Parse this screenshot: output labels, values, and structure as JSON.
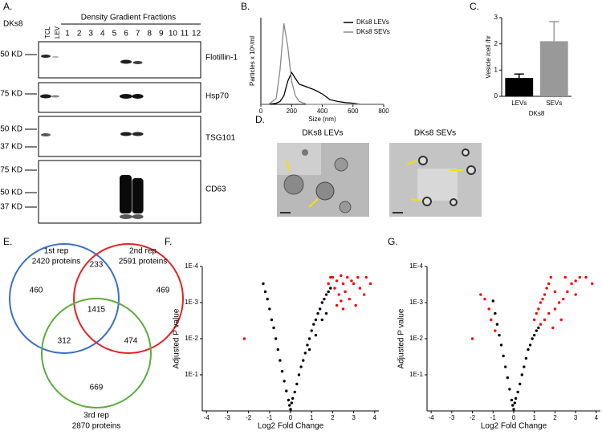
{
  "panel_labels": [
    "A.",
    "B.",
    "C.",
    "D.",
    "E.",
    "F.",
    "G."
  ],
  "blot": {
    "cell_line": "DKs8",
    "header": "Density Gradient Fractions",
    "lanes": [
      "TCL",
      "LEV",
      "1",
      "2",
      "3",
      "4",
      "5",
      "6",
      "7",
      "8",
      "9",
      "10",
      "11",
      "12"
    ],
    "rows": [
      {
        "target": "Flotillin-1",
        "markers": [
          "50 KD"
        ]
      },
      {
        "target": "Hsp70",
        "markers": [
          "75 KD"
        ]
      },
      {
        "target": "TSG101",
        "markers": [
          "50 KD",
          "37 KD"
        ]
      },
      {
        "target": "CD63",
        "markers": [
          "75 KD",
          "50 KD",
          "37 KD"
        ]
      }
    ]
  },
  "micrographs": {
    "titles": [
      "DKs8 LEVs",
      "DKs8 SEVs"
    ]
  },
  "venn": {
    "sets": [
      {
        "label": "1st rep",
        "count": "2420 proteins"
      },
      {
        "label": "2nd rep",
        "count": "2591 proteins"
      },
      {
        "label": "3rd rep",
        "count": "2870 proteins"
      }
    ],
    "regions": [
      460,
      233,
      469,
      1415,
      312,
      474,
      669
    ]
  },
  "chart_data": [
    {
      "type": "line",
      "xlabel": "Size (nm)",
      "ylabel": "Particles x 10⁶/ml",
      "x": [
        0,
        50,
        100,
        125,
        150,
        175,
        200,
        225,
        250,
        300,
        350,
        400,
        450,
        500,
        550,
        600,
        650,
        700,
        800
      ],
      "xlim": [
        0,
        800
      ],
      "xticks": [
        0,
        200,
        400,
        600,
        800
      ],
      "ylim": [
        0,
        150
      ],
      "legend": "upper right",
      "series": [
        {
          "name": "DKs8 LEVs",
          "color": "#000000",
          "values": [
            0,
            0,
            2,
            5,
            15,
            40,
            55,
            45,
            35,
            30,
            25,
            18,
            8,
            5,
            3,
            2,
            0,
            0,
            0
          ]
        },
        {
          "name": "DKs8 SEVs",
          "color": "#888888",
          "values": [
            0,
            0,
            10,
            60,
            140,
            100,
            40,
            15,
            5,
            0,
            0,
            0,
            0,
            0,
            0,
            0,
            0,
            0,
            0
          ]
        }
      ]
    },
    {
      "type": "bar",
      "xlabel": "DKs8",
      "ylabel": "Vesicle /cell /hr",
      "categories": [
        "LEVs",
        "SEVs"
      ],
      "values": [
        0.7,
        2.1
      ],
      "errors": [
        0.15,
        0.75
      ],
      "colors": [
        "#000000",
        "#999999"
      ],
      "ylim": [
        0,
        3
      ],
      "yticks": [
        0,
        1,
        2,
        3
      ]
    },
    {
      "type": "scatter",
      "xlabel": "Log2 Fold Change",
      "ylabel": "Adjusted P value",
      "log": true,
      "xlim": [
        -4.2,
        4.2
      ],
      "xticks": [
        -4,
        -3,
        -2,
        -1,
        0,
        1,
        2,
        3,
        4
      ],
      "ylim": [
        1,
        0.0001
      ],
      "yticks": [
        {
          "value": 0.0001,
          "label": "1E-4"
        },
        {
          "value": 0.001,
          "label": "1E-3"
        },
        {
          "value": 0.01,
          "label": "1E-2"
        },
        {
          "value": 0.1,
          "label": "1E-1"
        }
      ],
      "series": [
        {
          "color": "#000000",
          "x": [
            0,
            0.05,
            -0.05,
            0.1,
            -0.1,
            0.2,
            -0.2,
            0.3,
            -0.3,
            0.4,
            -0.4,
            0.5,
            -0.5,
            0.6,
            -0.6,
            0.7,
            -0.7,
            0.8,
            -0.8,
            0.9,
            -0.9,
            1.0,
            -1.0,
            1.1,
            -1.1,
            1.2,
            -1.2,
            1.3,
            -1.3,
            1.4,
            1.5,
            1.6,
            1.7,
            1.8,
            1.9,
            1.2,
            0.9,
            1.5,
            1.7
          ],
          "values": [
            0.9,
            0.6,
            0.7,
            0.45,
            0.5,
            0.3,
            0.28,
            0.18,
            0.15,
            0.1,
            0.08,
            0.06,
            0.04,
            0.04,
            0.02,
            0.025,
            0.01,
            0.015,
            0.005,
            0.01,
            0.003,
            0.006,
            0.0015,
            0.004,
            0.0008,
            0.003,
            0.0005,
            0.002,
            0.0003,
            0.0015,
            0.001,
            0.0008,
            0.0006,
            0.0005,
            0.0004,
            0.008,
            0.02,
            0.003,
            0.002
          ]
        },
        {
          "color": "#ff0000",
          "x": [
            -2.2,
            1.8,
            2.0,
            2.1,
            2.2,
            2.3,
            2.4,
            2.5,
            2.6,
            2.7,
            2.8,
            2.9,
            3.0,
            3.1,
            3.2,
            3.3,
            3.5,
            3.6,
            3.8,
            2.2,
            2.5,
            1.9,
            2.4
          ],
          "values": [
            0.01,
            0.0003,
            0.0002,
            0.0004,
            0.00025,
            0.0006,
            0.00018,
            0.0003,
            0.0005,
            0.0002,
            0.0008,
            0.00025,
            0.0003,
            0.0012,
            0.0002,
            0.0004,
            0.0006,
            0.0002,
            0.0003,
            0.0012,
            0.0015,
            0.0002,
            0.0009
          ]
        }
      ]
    },
    {
      "type": "scatter",
      "xlabel": "Log2 Fold Change",
      "ylabel": "Adjusted P value",
      "log": true,
      "xlim": [
        -4.2,
        4.2
      ],
      "xticks": [
        -4,
        -3,
        -2,
        -1,
        0,
        1,
        2,
        3,
        4
      ],
      "ylim": [
        1,
        0.0001
      ],
      "yticks": [
        {
          "value": 0.0001,
          "label": "1E-4"
        },
        {
          "value": 0.001,
          "label": "1E-3"
        },
        {
          "value": 0.01,
          "label": "1E-2"
        },
        {
          "value": 0.1,
          "label": "1E-1"
        }
      ],
      "series": [
        {
          "color": "#000000",
          "x": [
            0,
            0.05,
            -0.05,
            0.1,
            -0.1,
            0.2,
            -0.2,
            0.3,
            -0.3,
            0.4,
            -0.4,
            0.5,
            -0.5,
            0.6,
            -0.6,
            0.7,
            -0.7,
            0.8,
            -0.8,
            0.9,
            -0.9,
            1.0,
            1.1,
            1.2,
            -1.0
          ],
          "values": [
            0.9,
            0.6,
            0.7,
            0.45,
            0.5,
            0.3,
            0.25,
            0.18,
            0.12,
            0.1,
            0.06,
            0.06,
            0.03,
            0.035,
            0.015,
            0.02,
            0.008,
            0.015,
            0.004,
            0.01,
            0.002,
            0.008,
            0.006,
            0.005,
            0.0009
          ]
        },
        {
          "color": "#ff0000",
          "x": [
            -1.1,
            -1.2,
            -1.4,
            -1.6,
            -2.0,
            -0.9,
            1.0,
            1.1,
            1.2,
            1.3,
            1.4,
            1.5,
            1.6,
            1.7,
            1.8,
            1.3,
            1.5,
            1.7,
            2.0,
            2.2,
            2.4,
            2.6,
            2.8,
            3.0,
            3.2,
            3.5,
            3.8,
            2.0,
            2.5,
            3.0,
            1.9,
            2.3
          ],
          "values": [
            0.003,
            0.0015,
            0.0008,
            0.0006,
            0.01,
            0.006,
            0.003,
            0.002,
            0.0015,
            0.001,
            0.0008,
            0.0006,
            0.0004,
            0.0003,
            0.0002,
            0.004,
            0.003,
            0.002,
            0.0015,
            0.001,
            0.0008,
            0.0005,
            0.0003,
            0.00025,
            0.0002,
            0.0002,
            0.0003,
            0.0005,
            0.0002,
            0.0006,
            0.005,
            0.003
          ]
        }
      ]
    }
  ]
}
